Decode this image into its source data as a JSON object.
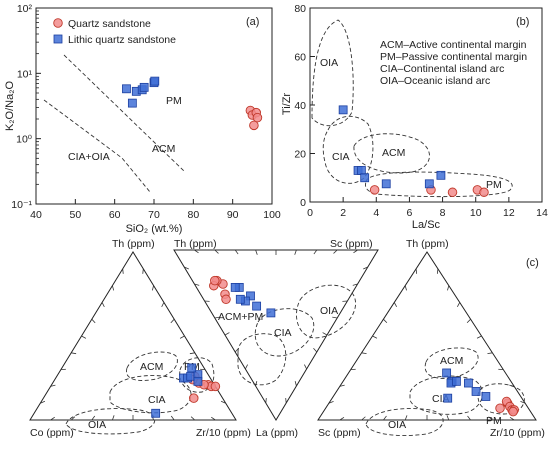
{
  "colors": {
    "quartz": "#f28c8c",
    "lithic": "#3f6fd6"
  },
  "chart_data": [
    {
      "id": "a",
      "type": "scatter",
      "panel_label": "(a)",
      "xlabel": "SiO₂ (wt.%)",
      "ylabel": "K₂O/Na₂O",
      "xlim": [
        40,
        100
      ],
      "ylim": [
        0.1,
        100
      ],
      "yscale": "log",
      "x_ticks": [
        "40",
        "50",
        "60",
        "70",
        "80",
        "90",
        "100"
      ],
      "y_ticks": [
        "10⁻¹",
        "10⁰",
        "10¹",
        "10²"
      ],
      "legend_position": "top-left",
      "legend": [
        "Quartz sandstone",
        "Lithic quartz sandstone"
      ],
      "fields": [
        "PM",
        "ACM",
        "CIA+OIA"
      ],
      "series": [
        {
          "name": "Quartz sandstone",
          "marker": "circle",
          "points": [
            [
              94.5,
              2.7
            ],
            [
              95.0,
              2.3
            ],
            [
              96.0,
              2.5
            ],
            [
              96.3,
              2.1
            ],
            [
              95.4,
              1.6
            ]
          ]
        },
        {
          "name": "Lithic quartz sandstone",
          "marker": "square",
          "points": [
            [
              63.0,
              5.8
            ],
            [
              64.5,
              3.5
            ],
            [
              65.5,
              5.3
            ],
            [
              67.0,
              5.6
            ],
            [
              67.5,
              6.1
            ],
            [
              70.0,
              7.2
            ],
            [
              70.2,
              7.6
            ]
          ]
        }
      ]
    },
    {
      "id": "b",
      "type": "scatter",
      "panel_label": "(b)",
      "xlabel": "La/Sc",
      "ylabel": "Ti/Zr",
      "xlim": [
        0,
        14
      ],
      "ylim": [
        0,
        80
      ],
      "x_ticks": [
        "0",
        "2",
        "4",
        "6",
        "8",
        "10",
        "12",
        "14"
      ],
      "y_ticks": [
        "0",
        "20",
        "40",
        "60",
        "80"
      ],
      "fields": [
        "OIA",
        "ACM",
        "CIA",
        "PM"
      ],
      "key": [
        "ACM–Active continental margin",
        "PM–Passive continental margin",
        "CIA–Continental island arc",
        "OIA–Oceanic island arc"
      ],
      "series": [
        {
          "name": "Quartz sandstone",
          "marker": "circle",
          "points": [
            [
              3.9,
              5
            ],
            [
              7.3,
              5
            ],
            [
              8.6,
              4
            ],
            [
              10.1,
              5
            ],
            [
              10.5,
              4
            ]
          ]
        },
        {
          "name": "Lithic quartz sandstone",
          "marker": "square",
          "points": [
            [
              2.0,
              38
            ],
            [
              2.9,
              13
            ],
            [
              3.1,
              13
            ],
            [
              3.3,
              10
            ],
            [
              4.6,
              7.5
            ],
            [
              7.2,
              7.5
            ],
            [
              7.9,
              11
            ]
          ]
        }
      ]
    },
    {
      "id": "c1",
      "type": "ternary",
      "panel_label": "(c)",
      "apex_top": "Th (ppm)",
      "apex_left": "Co (ppm)",
      "apex_right": "Zr/10 (ppm)",
      "fields": [
        "ACM",
        "PM",
        "CIA",
        "OIA"
      ],
      "series": [
        {
          "name": "Quartz sandstone",
          "marker": "circle",
          "points": [
            [
              0.22,
              0.07,
              0.71
            ],
            [
              0.26,
              0.07,
              0.67
            ],
            [
              0.21,
              0.03,
              0.76
            ],
            [
              0.2,
              0.02,
              0.78
            ],
            [
              0.2,
              0.0,
              0.8
            ],
            [
              0.21,
              0.05,
              0.74
            ],
            [
              0.24,
              0.09,
              0.67
            ],
            [
              0.13,
              0.14,
              0.73
            ]
          ]
        },
        {
          "name": "Lithic quartz sandstone",
          "marker": "square",
          "points": [
            [
              0.25,
              0.13,
              0.62
            ],
            [
              0.25,
              0.11,
              0.64
            ],
            [
              0.26,
              0.09,
              0.65
            ],
            [
              0.27,
              0.05,
              0.68
            ],
            [
              0.31,
              0.06,
              0.63
            ],
            [
              0.23,
              0.07,
              0.7
            ],
            [
              0.04,
              0.37,
              0.59
            ]
          ]
        }
      ]
    },
    {
      "id": "c2",
      "type": "ternary",
      "apex_top_left": "Th (ppm)",
      "apex_top_right": "Sc (ppm)",
      "apex_bottom": "La (ppm)",
      "fields": [
        "ACM+PM",
        "CIA",
        "OIA"
      ],
      "series": [
        {
          "name": "Quartz sandstone",
          "marker": "circle",
          "points": [
            [
              0.66,
              0.14,
              0.2
            ],
            [
              0.7,
              0.12,
              0.18
            ],
            [
              0.7,
              0.09,
              0.21
            ],
            [
              0.62,
              0.12,
              0.26
            ],
            [
              0.6,
              0.11,
              0.29
            ],
            [
              0.71,
              0.11,
              0.18
            ]
          ]
        },
        {
          "name": "Lithic quartz sandstone",
          "marker": "square",
          "points": [
            [
              0.43,
              0.24,
              0.33
            ],
            [
              0.49,
              0.24,
              0.27
            ],
            [
              0.5,
              0.2,
              0.3
            ],
            [
              0.53,
              0.18,
              0.29
            ],
            [
              0.57,
              0.21,
              0.22
            ],
            [
              0.59,
              0.19,
              0.22
            ],
            [
              0.34,
              0.29,
              0.37
            ]
          ]
        }
      ]
    },
    {
      "id": "c3",
      "type": "ternary",
      "apex_top": "Th (ppm)",
      "apex_left": "Sc (ppm)",
      "apex_right": "Zr/10 (ppm)",
      "fields": [
        "ACM",
        "PM",
        "CIA",
        "OIA"
      ],
      "series": [
        {
          "name": "Quartz sandstone",
          "marker": "circle",
          "points": [
            [
              0.1,
              0.08,
              0.82
            ],
            [
              0.11,
              0.08,
              0.81
            ],
            [
              0.08,
              0.08,
              0.84
            ],
            [
              0.06,
              0.08,
              0.86
            ],
            [
              0.06,
              0.07,
              0.87
            ],
            [
              0.05,
              0.08,
              0.87
            ],
            [
              0.07,
              0.13,
              0.8
            ]
          ]
        },
        {
          "name": "Lithic quartz sandstone",
          "marker": "square",
          "points": [
            [
              0.23,
              0.27,
              0.5
            ],
            [
              0.22,
              0.28,
              0.5
            ],
            [
              0.23,
              0.25,
              0.52
            ],
            [
              0.22,
              0.2,
              0.58
            ],
            [
              0.17,
              0.19,
              0.64
            ],
            [
              0.14,
              0.16,
              0.7
            ],
            [
              0.13,
              0.34,
              0.53
            ],
            [
              0.28,
              0.27,
              0.45
            ]
          ]
        }
      ]
    }
  ]
}
